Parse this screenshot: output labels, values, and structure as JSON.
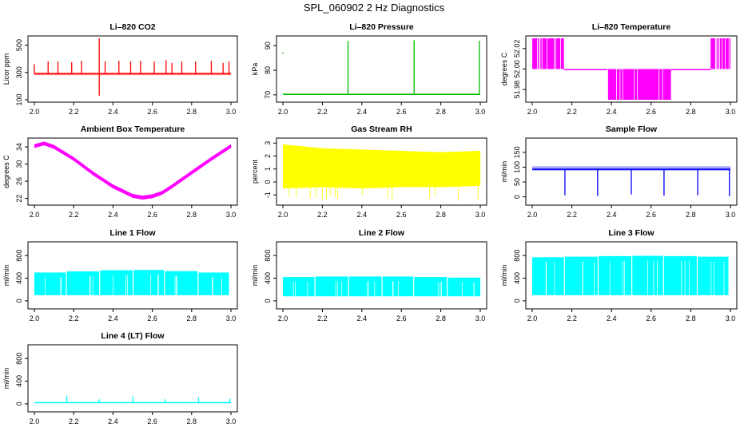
{
  "page": {
    "title": "SPL_060902  2 Hz Diagnostics"
  },
  "chart_data": [
    {
      "id": "co2",
      "type": "line",
      "title": "Li–820 CO2",
      "xlabel": "",
      "ylabel": "Licor ppm",
      "color": "#ff0000",
      "xlim": [
        2.0,
        3.0
      ],
      "ylim": [
        100,
        550
      ],
      "x_ticks": [
        "2.0",
        "2.2",
        "2.4",
        "2.6",
        "2.8",
        "3.0"
      ],
      "y_ticks": [
        {
          "v": 100,
          "label": "100"
        },
        {
          "v": 300,
          "label": "300"
        },
        {
          "v": 500,
          "label": "500"
        }
      ],
      "baseline": 290,
      "band": [
        280,
        300
      ],
      "spikes": [
        {
          "x": 2.0,
          "y": 360
        },
        {
          "x": 2.07,
          "y": 380
        },
        {
          "x": 2.12,
          "y": 380
        },
        {
          "x": 2.19,
          "y": 375
        },
        {
          "x": 2.24,
          "y": 385
        },
        {
          "x": 2.33,
          "y": 550,
          "low": 130
        },
        {
          "x": 2.36,
          "y": 380
        },
        {
          "x": 2.43,
          "y": 385
        },
        {
          "x": 2.49,
          "y": 380
        },
        {
          "x": 2.54,
          "y": 385
        },
        {
          "x": 2.61,
          "y": 380
        },
        {
          "x": 2.67,
          "y": 390
        },
        {
          "x": 2.7,
          "y": 370
        },
        {
          "x": 2.75,
          "y": 380
        },
        {
          "x": 2.82,
          "y": 380
        },
        {
          "x": 2.9,
          "y": 385
        },
        {
          "x": 2.96,
          "y": 370
        },
        {
          "x": 2.99,
          "y": 380
        }
      ]
    },
    {
      "id": "pressure",
      "type": "line",
      "title": "Li–820 Pressure",
      "xlabel": "",
      "ylabel": "kPa",
      "color": "#00bb00",
      "xlim": [
        2.0,
        3.0
      ],
      "ylim": [
        68,
        93
      ],
      "x_ticks": [
        "2.0",
        "2.2",
        "2.4",
        "2.6",
        "2.8",
        "3.0"
      ],
      "y_ticks": [
        {
          "v": 70,
          "label": "70"
        },
        {
          "v": 80,
          "label": "80"
        },
        {
          "v": 90,
          "label": "90"
        }
      ],
      "baseline": 70.2,
      "spikes": [
        {
          "x": 2.33,
          "y": 92
        },
        {
          "x": 2.665,
          "y": 92.2
        },
        {
          "x": 2.995,
          "y": 92
        }
      ],
      "points": [
        {
          "x": 2.0,
          "y": 87
        }
      ]
    },
    {
      "id": "temperature",
      "type": "line",
      "title": "Li–820 Temperature",
      "xlabel": "",
      "ylabel": "degrees C",
      "color": "#ff00ff",
      "xlim": [
        2.0,
        3.0
      ],
      "ylim": [
        51.97,
        52.03
      ],
      "x_ticks": [
        "2.0",
        "2.2",
        "2.4",
        "2.6",
        "2.8",
        "3.0"
      ],
      "y_ticks": [
        {
          "v": 51.98,
          "label": "51.98"
        },
        {
          "v": 52.0,
          "label": "52.00"
        },
        {
          "v": 52.02,
          "label": "52.02"
        }
      ],
      "segments": [
        {
          "x0": 2.0,
          "x1": 2.16,
          "lo": 52.0,
          "hi": 52.03
        },
        {
          "x0": 2.16,
          "x1": 2.38,
          "lo": 52.0,
          "hi": 52.0
        },
        {
          "x0": 2.38,
          "x1": 2.7,
          "lo": 51.97,
          "hi": 52.0
        },
        {
          "x0": 2.7,
          "x1": 2.9,
          "lo": 52.0,
          "hi": 52.0
        },
        {
          "x0": 2.9,
          "x1": 3.0,
          "lo": 52.0,
          "hi": 52.03
        }
      ]
    },
    {
      "id": "ambient",
      "type": "line",
      "title": "Ambient Box Temperature",
      "xlabel": "",
      "ylabel": "degrees C",
      "color": "#ff00ff",
      "xlim": [
        2.0,
        3.0
      ],
      "ylim": [
        21,
        35.5
      ],
      "x_ticks": [
        "2.0",
        "2.2",
        "2.4",
        "2.6",
        "2.8",
        "3.0"
      ],
      "y_ticks": [
        {
          "v": 22,
          "label": "22"
        },
        {
          "v": 26,
          "label": "26"
        },
        {
          "v": 30,
          "label": "30"
        },
        {
          "v": 34,
          "label": "34"
        }
      ],
      "x": [
        2.0,
        2.05,
        2.1,
        2.2,
        2.3,
        2.4,
        2.5,
        2.55,
        2.6,
        2.65,
        2.7,
        2.8,
        2.9,
        3.0
      ],
      "y": [
        34.2,
        34.8,
        34.0,
        31.2,
        27.8,
        24.8,
        22.6,
        22.2,
        22.5,
        23.3,
        24.8,
        28.0,
        31.2,
        34.2
      ],
      "noise": 0.9
    },
    {
      "id": "rh",
      "type": "line",
      "title": "Gas Stream RH",
      "xlabel": "",
      "ylabel": "percent",
      "color": "#ffff00",
      "xlim": [
        2.0,
        3.0
      ],
      "ylim": [
        -1.6,
        3.2
      ],
      "x_ticks": [
        "2.0",
        "2.2",
        "2.4",
        "2.6",
        "2.8",
        "3.0"
      ],
      "y_ticks": [
        {
          "v": -1,
          "label": "-1"
        },
        {
          "v": 0,
          "label": "0"
        },
        {
          "v": 1,
          "label": "1"
        },
        {
          "v": 2,
          "label": "2"
        },
        {
          "v": 3,
          "label": "3"
        }
      ],
      "x": [
        2.0,
        2.2,
        2.4,
        2.6,
        2.8,
        3.0
      ],
      "hi": [
        2.9,
        2.6,
        2.5,
        2.4,
        2.3,
        2.4
      ],
      "lo": [
        -0.5,
        -0.4,
        -0.5,
        -0.4,
        -0.4,
        -0.3
      ]
    },
    {
      "id": "sample",
      "type": "line",
      "title": "Sample Flow",
      "xlabel": "",
      "ylabel": "ml/min",
      "color": "#0000ff",
      "xlim": [
        2.0,
        3.0
      ],
      "ylim": [
        -20,
        190
      ],
      "x_ticks": [
        "2.0",
        "2.2",
        "2.4",
        "2.6",
        "2.8",
        "3.0"
      ],
      "y_ticks": [
        {
          "v": 0,
          "label": "0"
        },
        {
          "v": 50,
          "label": "50"
        },
        {
          "v": 100,
          "label": "100"
        },
        {
          "v": 150,
          "label": "150"
        }
      ],
      "baseline": 93,
      "band": [
        88,
        103
      ],
      "dips": [
        {
          "x": 2.165,
          "y": 5
        },
        {
          "x": 2.33,
          "y": 3
        },
        {
          "x": 2.5,
          "y": 8
        },
        {
          "x": 2.665,
          "y": 4
        },
        {
          "x": 2.835,
          "y": 5
        },
        {
          "x": 2.995,
          "y": 2
        }
      ]
    },
    {
      "id": "line1",
      "type": "area",
      "title": "Line 1 Flow",
      "xlabel": "",
      "ylabel": "ml/min",
      "color": "#00ffff",
      "xlim": [
        2.0,
        3.0
      ],
      "ylim": [
        -100,
        1000
      ],
      "x_ticks": [
        "2.0",
        "2.2",
        "2.4",
        "2.6",
        "2.8",
        "3.0"
      ],
      "y_ticks": [
        {
          "v": 0,
          "label": "0"
        },
        {
          "v": 400,
          "label": "400"
        },
        {
          "v": 800,
          "label": "800"
        }
      ],
      "blocks": [
        {
          "x0": 2.0,
          "x1": 2.16,
          "lo": 100,
          "hi": 500
        },
        {
          "x0": 2.165,
          "x1": 2.33,
          "lo": 100,
          "hi": 520
        },
        {
          "x0": 2.335,
          "x1": 2.5,
          "lo": 100,
          "hi": 540
        },
        {
          "x0": 2.505,
          "x1": 2.66,
          "lo": 100,
          "hi": 545
        },
        {
          "x0": 2.665,
          "x1": 2.83,
          "lo": 100,
          "hi": 525
        },
        {
          "x0": 2.835,
          "x1": 2.99,
          "lo": 100,
          "hi": 500
        }
      ]
    },
    {
      "id": "line2",
      "type": "area",
      "title": "Line 2 Flow",
      "xlabel": "",
      "ylabel": "ml/min",
      "color": "#00ffff",
      "xlim": [
        2.0,
        3.0
      ],
      "ylim": [
        -100,
        1000
      ],
      "x_ticks": [
        "2.0",
        "2.2",
        "2.4",
        "2.6",
        "2.8",
        "3.0"
      ],
      "y_ticks": [
        {
          "v": 0,
          "label": "0"
        },
        {
          "v": 400,
          "label": "400"
        },
        {
          "v": 800,
          "label": "800"
        }
      ],
      "blocks": [
        {
          "x0": 2.0,
          "x1": 2.16,
          "lo": 80,
          "hi": 420
        },
        {
          "x0": 2.165,
          "x1": 2.33,
          "lo": 80,
          "hi": 430
        },
        {
          "x0": 2.335,
          "x1": 2.5,
          "lo": 80,
          "hi": 430
        },
        {
          "x0": 2.505,
          "x1": 2.66,
          "lo": 80,
          "hi": 430
        },
        {
          "x0": 2.665,
          "x1": 2.83,
          "lo": 80,
          "hi": 420
        },
        {
          "x0": 2.835,
          "x1": 3.0,
          "lo": 80,
          "hi": 410
        }
      ]
    },
    {
      "id": "line3",
      "type": "area",
      "title": "Line 3 Flow",
      "xlabel": "",
      "ylabel": "ml/min",
      "color": "#00ffff",
      "xlim": [
        2.0,
        3.0
      ],
      "ylim": [
        -100,
        1000
      ],
      "x_ticks": [
        "2.0",
        "2.2",
        "2.4",
        "2.6",
        "2.8",
        "3.0"
      ],
      "y_ticks": [
        {
          "v": 0,
          "label": "0"
        },
        {
          "v": 400,
          "label": "400"
        },
        {
          "v": 800,
          "label": "800"
        }
      ],
      "blocks": [
        {
          "x0": 2.0,
          "x1": 2.16,
          "lo": 100,
          "hi": 770
        },
        {
          "x0": 2.165,
          "x1": 2.33,
          "lo": 100,
          "hi": 780
        },
        {
          "x0": 2.335,
          "x1": 2.5,
          "lo": 100,
          "hi": 790
        },
        {
          "x0": 2.505,
          "x1": 2.66,
          "lo": 100,
          "hi": 795
        },
        {
          "x0": 2.665,
          "x1": 2.83,
          "lo": 100,
          "hi": 790
        },
        {
          "x0": 2.835,
          "x1": 2.99,
          "lo": 100,
          "hi": 780
        }
      ]
    },
    {
      "id": "line4",
      "type": "line",
      "title": "Line 4 (LT) Flow",
      "xlabel": "",
      "ylabel": "ml/min",
      "color": "#00ffff",
      "xlim": [
        2.0,
        3.0
      ],
      "ylim": [
        -100,
        1000
      ],
      "x_ticks": [
        "2.0",
        "2.2",
        "2.4",
        "2.6",
        "2.8",
        "3.0"
      ],
      "y_ticks": [
        {
          "v": 0,
          "label": "0"
        },
        {
          "v": 400,
          "label": "400"
        },
        {
          "v": 800,
          "label": "800"
        }
      ],
      "baseline": 20,
      "spikes": [
        {
          "x": 2.165,
          "y": 140
        },
        {
          "x": 2.33,
          "y": 80
        },
        {
          "x": 2.5,
          "y": 130
        },
        {
          "x": 2.665,
          "y": 80
        },
        {
          "x": 2.835,
          "y": 110
        },
        {
          "x": 2.995,
          "y": 90
        }
      ]
    }
  ]
}
